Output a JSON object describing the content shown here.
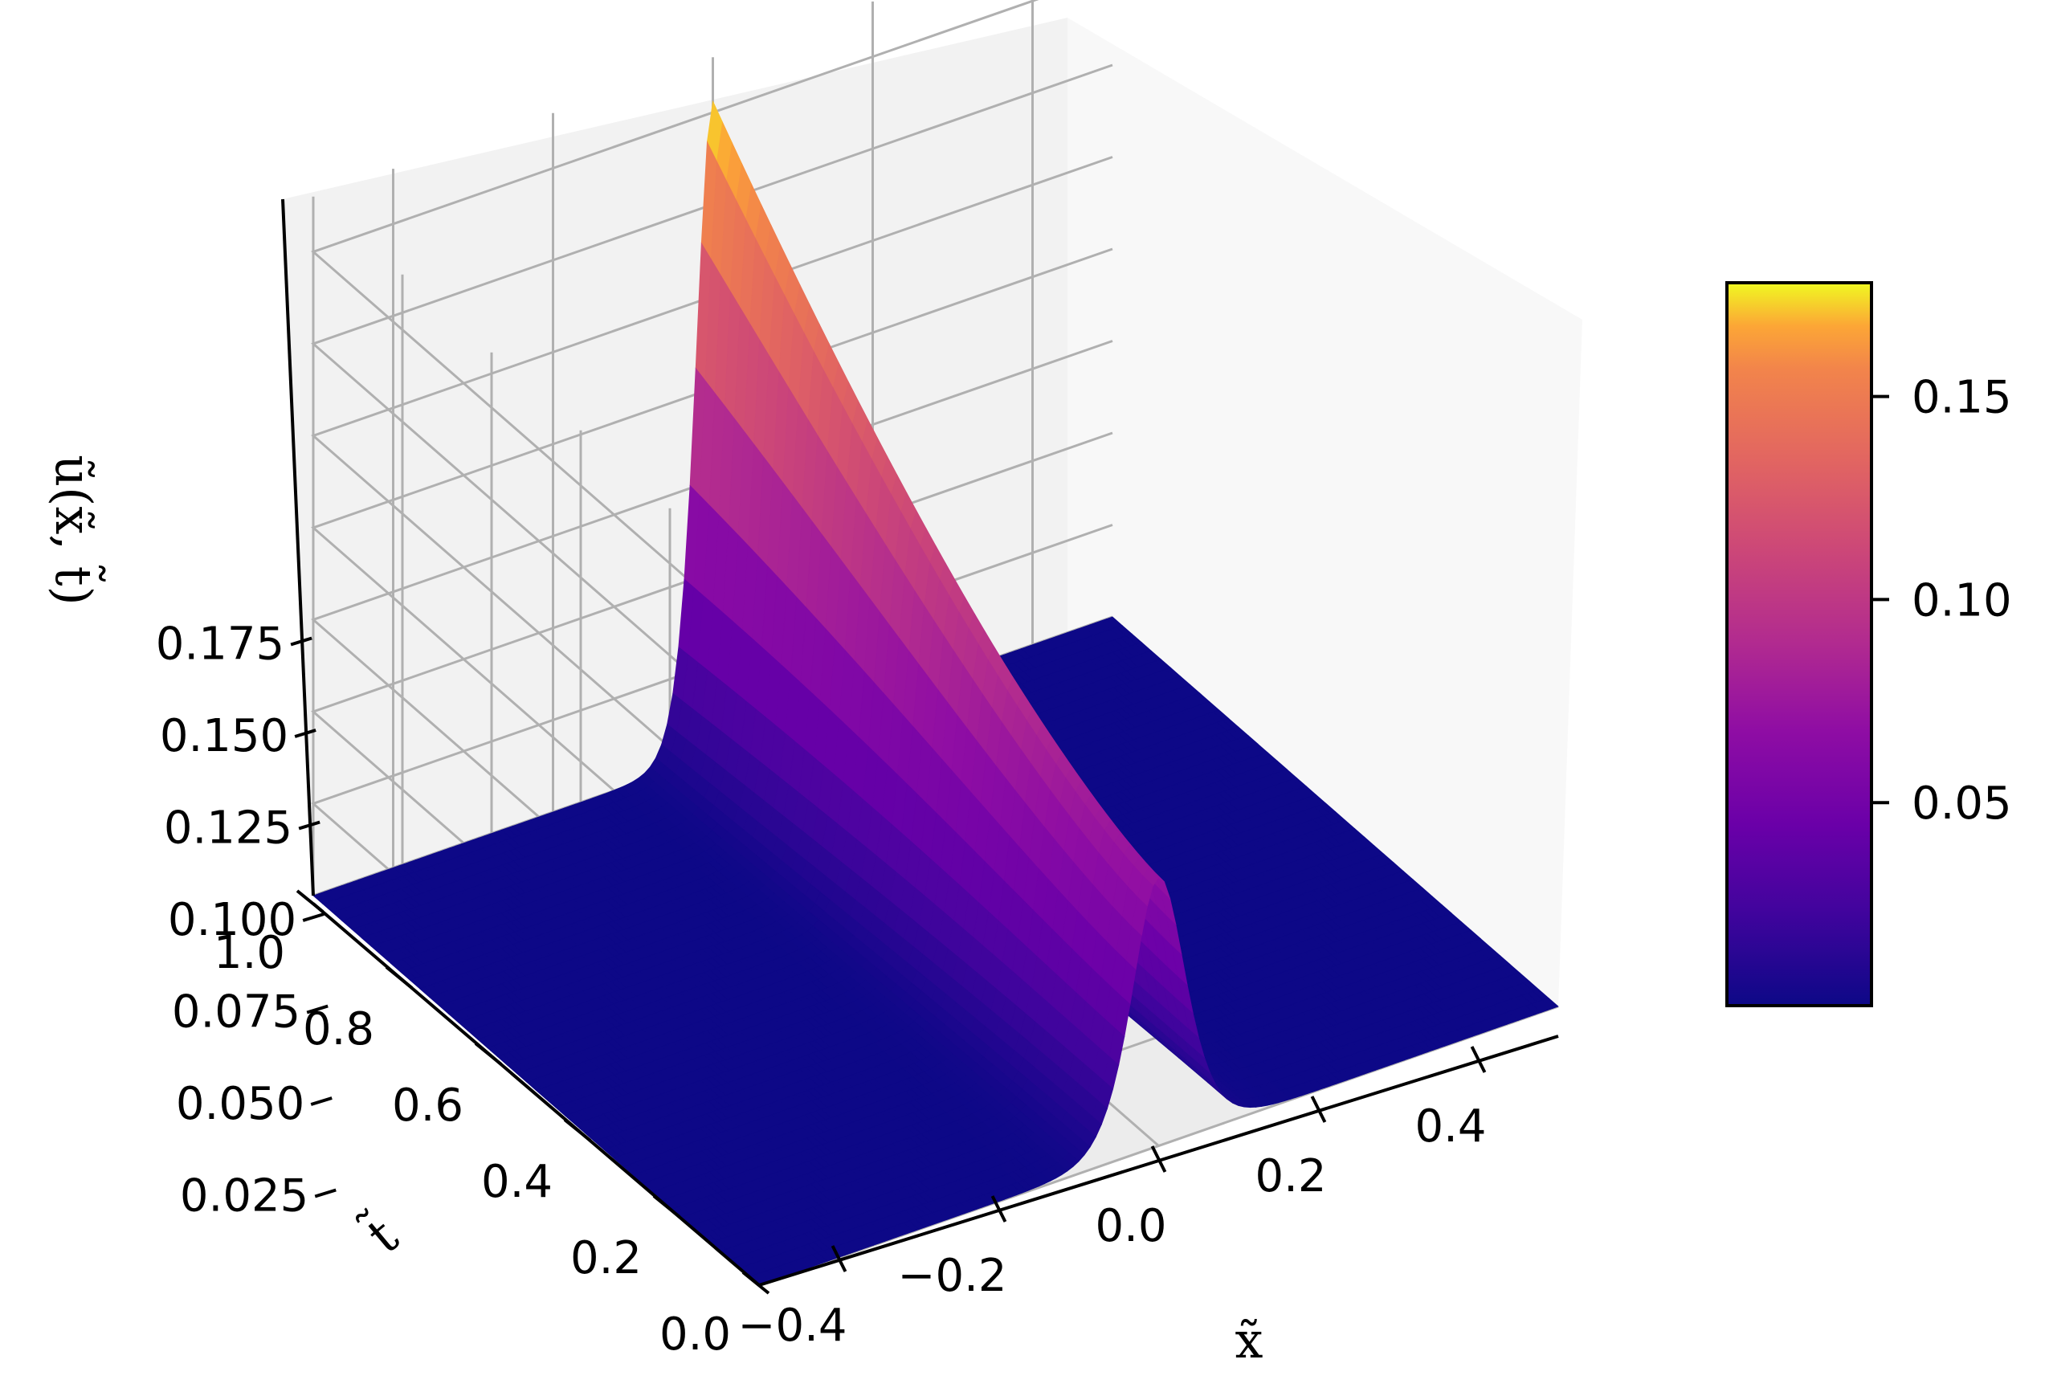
{
  "chart_data": {
    "type": "surface",
    "colormap": "plasma",
    "xlabel": "x̃",
    "ylabel": "t̃",
    "zlabel": "ũ(x̃, t̃)",
    "xlim": [
      -0.5,
      0.5
    ],
    "ylim": [
      0.0,
      1.0
    ],
    "zlim": [
      0.0,
      0.19
    ],
    "x_ticks": [
      "−0.4",
      "−0.2",
      "0.0",
      "0.2",
      "0.4"
    ],
    "x_tick_values": [
      -0.4,
      -0.2,
      0.0,
      0.2,
      0.4
    ],
    "y_ticks": [
      "0.0",
      "0.2",
      "0.4",
      "0.6",
      "0.8",
      "1.0"
    ],
    "y_tick_values": [
      0.0,
      0.2,
      0.4,
      0.6,
      0.8,
      1.0
    ],
    "z_ticks": [
      "0.025",
      "0.050",
      "0.075",
      "0.100",
      "0.125",
      "0.150",
      "0.175"
    ],
    "z_tick_values": [
      0.025,
      0.05,
      0.075,
      0.1,
      0.125,
      0.15,
      0.175
    ],
    "colorbar": {
      "ticks": [
        "0.05",
        "0.10",
        "0.15"
      ],
      "tick_values": [
        0.05,
        0.1,
        0.15
      ],
      "range": [
        0.0,
        0.178
      ]
    },
    "surface": {
      "description_values": {
        "peak_at_t0": {
          "x": 0.0,
          "t": 0.0,
          "u": 0.073
        },
        "peak_at_t1": {
          "x": 0.0,
          "t": 1.0,
          "u": 0.178
        },
        "baseline": 0.0
      }
    },
    "grid": true,
    "view": {
      "elev": 25,
      "azim": -125
    }
  }
}
